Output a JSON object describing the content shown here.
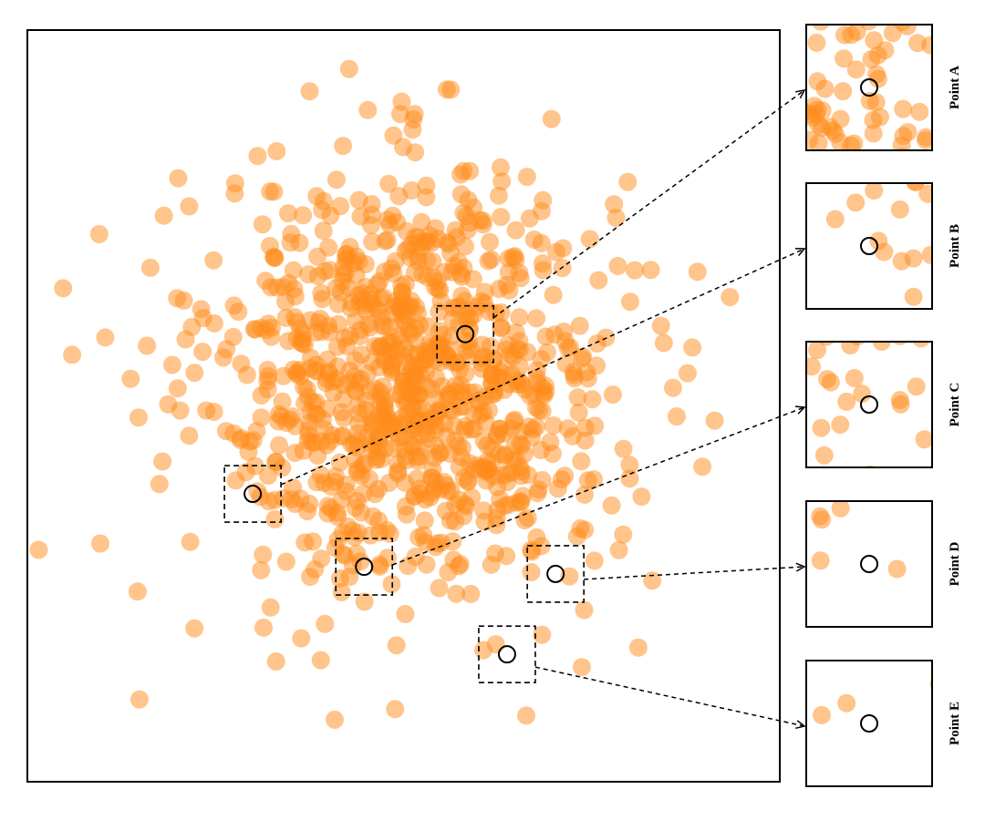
{
  "chart_data": {
    "type": "scatter",
    "x_range": [
      -100,
      100
    ],
    "y_range": [
      -100,
      100
    ],
    "grid": false,
    "marker_color": "#ff8c1a",
    "marker_alpha": 0.5,
    "cloud": {
      "count": 900,
      "center": [
        3,
        8
      ],
      "spread": [
        26,
        27
      ]
    },
    "points": [
      {
        "x": 17.0,
        "y": 46.8
      },
      {
        "x": 22.9,
        "y": 43.6
      },
      {
        "x": -0.8,
        "y": 25.5
      },
      {
        "x": 3.3,
        "y": 26.3
      },
      {
        "x": 8.9,
        "y": 15.1
      },
      {
        "x": 12.6,
        "y": 14.9
      },
      {
        "x": 27.6,
        "y": 16.2
      },
      {
        "x": 36.6,
        "y": 12.4
      },
      {
        "x": 45.3,
        "y": 8.2
      },
      {
        "x": 55.6,
        "y": 3.0
      },
      {
        "x": -20.2,
        "y": -0.7
      },
      {
        "x": -36.1,
        "y": 4.4
      },
      {
        "x": -27.6,
        "y": 9.6
      },
      {
        "x": -40.9,
        "y": -9.5
      },
      {
        "x": -33.3,
        "y": -4.1
      },
      {
        "x": -6.8,
        "y": -12.2
      },
      {
        "x": -2.4,
        "y": -5.6
      },
      {
        "x": 5.8,
        "y": -4.1
      },
      {
        "x": 14.5,
        "y": -10.6
      },
      {
        "x": 21.3,
        "y": -9.2
      },
      {
        "x": 30.0,
        "y": -14.5
      },
      {
        "x": 42.0,
        "y": -19.6
      },
      {
        "x": 25.6,
        "y": -24.8
      },
      {
        "x": 7.1,
        "y": -24.3
      },
      {
        "x": -3.6,
        "y": -34.0
      },
      {
        "x": -13.5,
        "y": -33.2
      },
      {
        "x": -21.1,
        "y": -20.5
      },
      {
        "x": 8.5,
        "y": -37.5
      },
      {
        "x": 14.7,
        "y": -42.6
      },
      {
        "x": 24.7,
        "y": -31.7
      },
      {
        "x": 36.6,
        "y": -37.3
      },
      {
        "x": 47.0,
        "y": -32.6
      },
      {
        "x": 55.3,
        "y": -26.5
      },
      {
        "x": -12.0,
        "y": 29.5
      },
      {
        "x": -25.3,
        "y": 35.0
      },
      {
        "x": -45.1,
        "y": 26.7
      },
      {
        "x": -56.3,
        "y": 21.0
      },
      {
        "x": -68.2,
        "y": 16.0
      },
      {
        "x": -79.3,
        "y": 18.2
      },
      {
        "x": -88.1,
        "y": 13.6
      },
      {
        "x": -64.9,
        "y": -20.8
      },
      {
        "x": -56.7,
        "y": -36.2
      },
      {
        "x": -37.9,
        "y": -43.7
      },
      {
        "x": -23.1,
        "y": 55.8
      },
      {
        "x": -16.1,
        "y": 69.2
      },
      {
        "x": 2.4,
        "y": 73.5
      },
      {
        "x": 11.5,
        "y": 84.2
      },
      {
        "x": -38.8,
        "y": 66.5
      },
      {
        "x": -57.0,
        "y": 53.1
      },
      {
        "x": -90.5,
        "y": 31.3
      },
      {
        "x": 49.5,
        "y": 44.4
      },
      {
        "x": 65.7,
        "y": 36.2
      },
      {
        "x": 68.4,
        "y": 21.3
      },
      {
        "x": 75.5,
        "y": 8.7
      },
      {
        "x": 72.6,
        "y": -2.8
      },
      {
        "x": 60.1,
        "y": -15.7
      },
      {
        "x": 66.1,
        "y": -46.5
      },
      {
        "x": 48.0,
        "y": -54.3
      },
      {
        "x": 36.8,
        "y": -60.9
      },
      {
        "x": 21.2,
        "y": -65.0
      },
      {
        "x": -1.9,
        "y": -63.7
      },
      {
        "x": -20.9,
        "y": -58.0
      },
      {
        "x": -33.9,
        "y": -68.0
      },
      {
        "x": -55.6,
        "y": -59.2
      },
      {
        "x": -70.7,
        "y": -49.4
      },
      {
        "x": -80.6,
        "y": -36.6
      },
      {
        "x": -97.0,
        "y": -38.3
      },
      {
        "x": -10.4,
        "y": -52.1
      },
      {
        "x": 32.6,
        "y": -82.4
      },
      {
        "x": -18.3,
        "y": -83.5
      },
      {
        "x": -70.2,
        "y": -78.1
      },
      {
        "x": -80.9,
        "y": 45.7
      },
      {
        "x": 17.6,
        "y": 62.5
      },
      {
        "x": 36.7,
        "y": 51.8
      },
      {
        "x": 59.6,
        "y": 59.6
      },
      {
        "x": 47.4,
        "y": -69.5
      },
      {
        "x": 62.4,
        "y": -64.3
      },
      {
        "x": 82.7,
        "y": -3.9
      }
    ],
    "annotations": [
      {
        "label": "Point A",
        "x": 16.4,
        "y": 19.1
      },
      {
        "label": "Point B",
        "x": -40.1,
        "y": -23.4
      },
      {
        "label": "Point C",
        "x": -10.5,
        "y": -42.8
      },
      {
        "label": "Point D",
        "x": 40.4,
        "y": -44.7
      },
      {
        "label": "Point E",
        "x": 27.5,
        "y": -66.1
      }
    ]
  }
}
